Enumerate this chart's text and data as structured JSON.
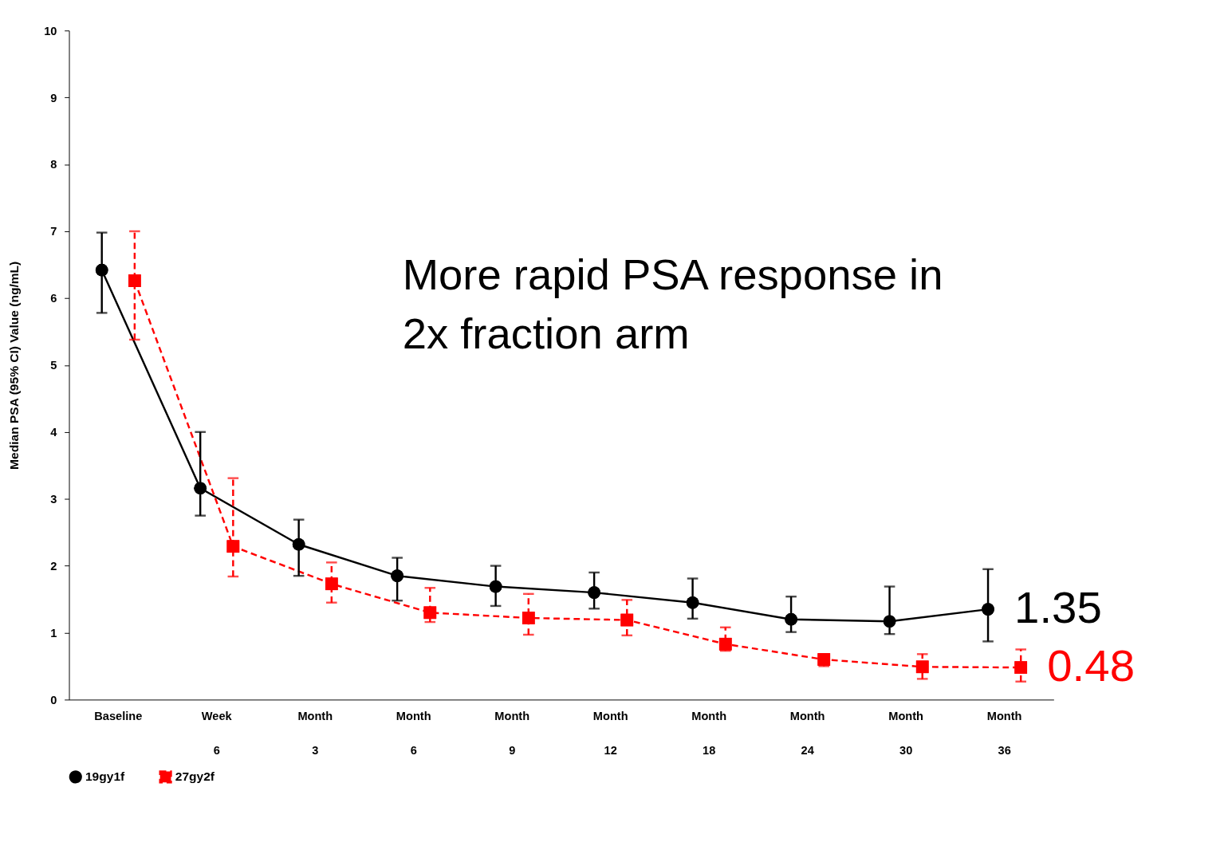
{
  "chart_data": {
    "type": "line",
    "ylabel": "Median PSA (95% CI) Value (ng/mL)",
    "categories": [
      "Baseline",
      "Week 6",
      "Month 3",
      "Month 6",
      "Month 9",
      "Month 12",
      "Month 18",
      "Month 24",
      "Month 30",
      "Month 36"
    ],
    "series": [
      {
        "name": "19gy1f",
        "color": "#000000",
        "marker": "circle",
        "line_style": "solid",
        "values": [
          6.42,
          3.16,
          2.32,
          1.85,
          1.69,
          1.6,
          1.45,
          1.2,
          1.17,
          1.35
        ],
        "errors": [
          [
            5.78,
            6.98
          ],
          [
            2.75,
            4.0
          ],
          [
            1.85,
            2.69
          ],
          [
            1.48,
            2.12
          ],
          [
            1.4,
            2.0
          ],
          [
            1.36,
            1.9
          ],
          [
            1.21,
            1.81
          ],
          [
            1.01,
            1.54
          ],
          [
            0.98,
            1.69
          ],
          [
            0.87,
            1.95
          ]
        ],
        "value_labels": [
          null,
          null,
          null,
          null,
          null,
          null,
          null,
          null,
          null,
          "1.35"
        ]
      },
      {
        "name": "27gy2f",
        "color": "#ff0000",
        "marker": "square",
        "line_style": "dashed",
        "values": [
          6.26,
          2.29,
          1.73,
          1.3,
          1.22,
          1.19,
          0.83,
          0.6,
          0.49,
          0.48
        ],
        "errors": [
          [
            5.38,
            7.0
          ],
          [
            1.84,
            3.31
          ],
          [
            1.45,
            2.05
          ],
          [
            1.16,
            1.67
          ],
          [
            0.97,
            1.58
          ],
          [
            0.96,
            1.49
          ],
          [
            0.73,
            1.08
          ],
          [
            0.5,
            0.68
          ],
          [
            0.31,
            0.68
          ],
          [
            0.27,
            0.75
          ]
        ],
        "value_labels": [
          null,
          null,
          null,
          null,
          null,
          null,
          null,
          null,
          null,
          "0.48"
        ]
      }
    ],
    "ylim": [
      0,
      10
    ],
    "yticks": [
      0,
      1,
      2,
      3,
      4,
      5,
      6,
      7,
      8,
      9,
      10
    ],
    "grid": false,
    "legend": "bottom",
    "annotations": [
      "More rapid PSA response in 2x fraction arm"
    ]
  }
}
